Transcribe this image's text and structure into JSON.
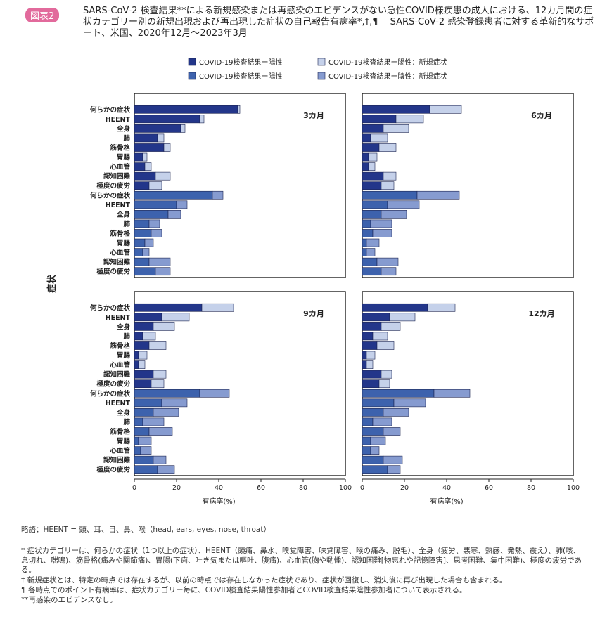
{
  "header": {
    "badge": "図表2",
    "title": "SARS-CoV-2 検査結果**による新規感染または再感染のエビデンスがない急性COVID様疾患の成人における、12カ月間の症状カテゴリー別の新規出現および再出現した症状の自己報告有病率*,†,¶ —SARS-CoV-2 感染登録患者に対する革新的なサポート、米国、2020年12月～2023年3月"
  },
  "legend": [
    {
      "label": "COVID-19検査結果ー陽性",
      "color": "#23368a"
    },
    {
      "label": "COVID-19検査結果ー陽性：新規症状",
      "color": "#c5d1ea"
    },
    {
      "label": "COVID-19検査結果ー陽性",
      "color": "#3d62ad"
    },
    {
      "label": "COVID-19検査結果ー陰性：新規症状",
      "color": "#869bd0"
    }
  ],
  "colors": {
    "pos": "#23368a",
    "posNew": "#c5d1ea",
    "neg": "#3d62ad",
    "negNew": "#869bd0",
    "frame": "#222222",
    "bar_outline": "#1c2450"
  },
  "ylabel": "症状",
  "xlabel": "有病率(%)",
  "ticks": [
    "0",
    "20",
    "40",
    "60",
    "80",
    "100"
  ],
  "categories": [
    "何らかの症状",
    "HEENT",
    "全身",
    "肺",
    "筋骨格",
    "胃腸",
    "心血管",
    "認知困難",
    "極度の疲労"
  ],
  "chart_data": [
    {
      "type": "bar",
      "panel": "3カ月",
      "xlim": [
        0,
        100
      ],
      "positive": {
        "total": [
          50,
          33,
          24,
          14,
          17,
          6,
          8,
          17,
          13
        ],
        "new": [
          1,
          2,
          2,
          3,
          3,
          2,
          3,
          7,
          6
        ]
      },
      "negative": {
        "total": [
          42,
          25,
          22,
          12,
          13,
          9,
          7,
          17,
          17
        ],
        "new": [
          5,
          5,
          6,
          5,
          5,
          4,
          3,
          10,
          7
        ]
      }
    },
    {
      "type": "bar",
      "panel": "6カ月",
      "xlim": [
        0,
        100
      ],
      "positive": {
        "total": [
          47,
          29,
          22,
          12,
          16,
          7,
          6,
          16,
          15
        ],
        "new": [
          15,
          13,
          12,
          8,
          8,
          4,
          3,
          6,
          6
        ]
      },
      "negative": {
        "total": [
          46,
          27,
          21,
          14,
          14,
          8,
          6,
          17,
          16
        ],
        "new": [
          20,
          15,
          12,
          10,
          9,
          6,
          4,
          10,
          7
        ]
      }
    },
    {
      "type": "bar",
      "panel": "9カ月",
      "xlim": [
        0,
        100
      ],
      "positive": {
        "total": [
          47,
          26,
          19,
          10,
          15,
          6,
          5,
          15,
          14
        ],
        "new": [
          15,
          13,
          10,
          6,
          8,
          4,
          3,
          6,
          6
        ]
      },
      "negative": {
        "total": [
          45,
          25,
          21,
          14,
          18,
          8,
          8,
          15,
          19
        ],
        "new": [
          14,
          12,
          12,
          10,
          11,
          6,
          5,
          6,
          8
        ]
      }
    },
    {
      "type": "bar",
      "panel": "12カ月",
      "xlim": [
        0,
        100
      ],
      "positive": {
        "total": [
          44,
          25,
          18,
          12,
          15,
          6,
          5,
          14,
          13
        ],
        "new": [
          13,
          12,
          9,
          7,
          8,
          4,
          3,
          5,
          5
        ]
      },
      "negative": {
        "total": [
          51,
          30,
          22,
          14,
          18,
          11,
          8,
          19,
          18
        ],
        "new": [
          17,
          15,
          12,
          9,
          8,
          7,
          4,
          9,
          6
        ]
      }
    }
  ],
  "footnotes": {
    "abbr": "略語：HEENT = 頭、耳、目、鼻、喉（head, ears, eyes, nose, throat）",
    "star": "* 症状カテゴリーは、何らかの症状（1つ以上の症状）、HEENT（頭痛、鼻水、嗅覚障害、味覚障害、喉の痛み、脱毛）、全身（疲労、悪寒、熱感、発熱、震え）、肺(咳、息切れ、喘鳴)、筋骨格(痛みや関節痛)、胃腸(下痢、吐き気または嘔吐、腹痛)、心血管(胸や動悸)、認知困難[物忘れや記憶障害]、思考困難、集中困難)、極度の疲労である。",
    "dagger": "† 新規症状とは、特定の時点では存在するが、以前の時点では存在しなかった症状であり、症状が回復し、消失後に再び出現した場合も含まれる。",
    "para": "¶ 各時点でのポイント有病率は、症状カテゴリー毎に、COVID検査結果陽性参加者とCOVID検査結果陰性参加者について表示される。",
    "dstar": "**再感染のエビデンスなし。"
  }
}
